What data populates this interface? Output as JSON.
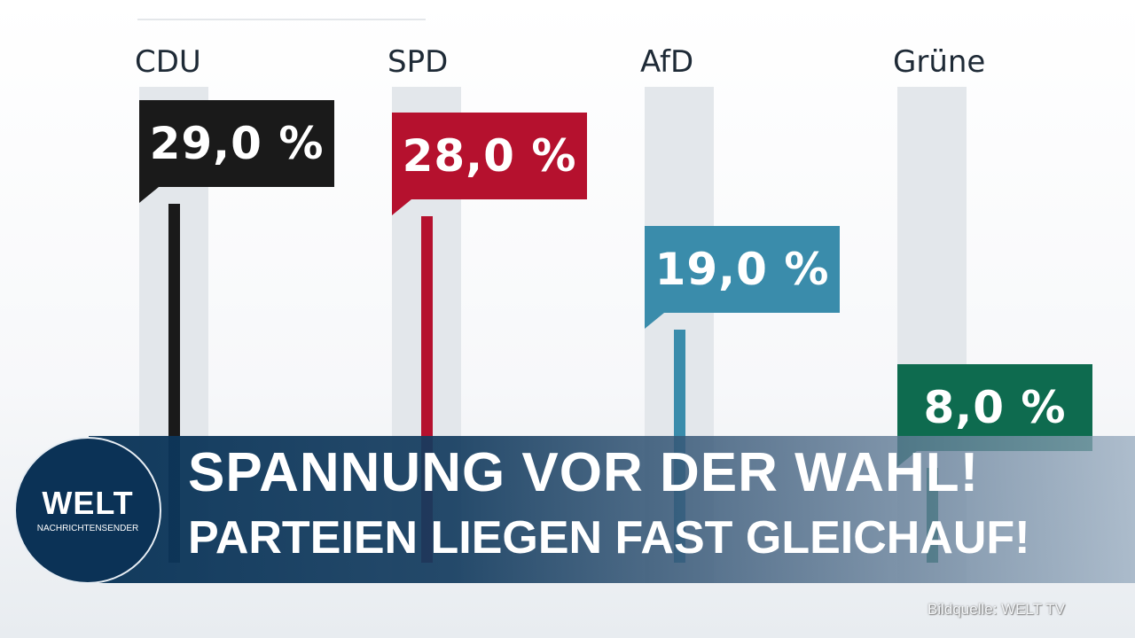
{
  "chart_data": {
    "type": "bar",
    "categories": [
      "CDU",
      "SPD",
      "AfD",
      "Grüne"
    ],
    "values": [
      29.0,
      28.0,
      19.0,
      8.0
    ],
    "value_labels": [
      "29,0 %",
      "28,0 %",
      "19,0 %",
      "8,0 %"
    ],
    "colors": [
      "#1a1a1a",
      "#b5112e",
      "#3a8cab",
      "#0e6b4f"
    ],
    "unit": "%",
    "grid": false
  },
  "banner": {
    "headline": "SPANNUNG VOR DER WAHL!",
    "subline": "PARTEIEN LIEGEN FAST GLEICHAUF!"
  },
  "logo": {
    "name": "WELT",
    "tagline": "NACHRICHTENSENDER"
  },
  "source": "Bildquelle: WELT TV"
}
